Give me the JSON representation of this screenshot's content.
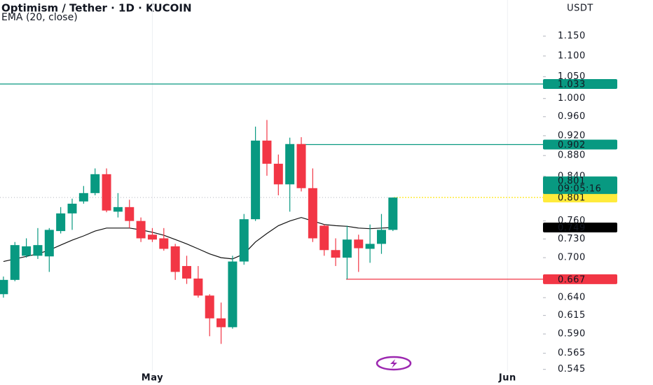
{
  "chart_data": {
    "type": "candlestick",
    "title": "Optimism / Tether · 1D · KUCOIN",
    "y_axis_label": "USDT",
    "log_scale": true,
    "x_grid": true,
    "up_color": "#089981",
    "down_color": "#f23645",
    "ylim": [
      0.543,
      1.247
    ],
    "yticks": [
      0.545,
      0.565,
      {
        "value": 0.59,
        "label": "0.590"
      },
      0.615,
      {
        "value": 0.64,
        "label": "0.640"
      },
      {
        "value": 0.7,
        "label": "0.700"
      },
      {
        "value": 0.73,
        "label": "0.730"
      },
      {
        "value": 0.76,
        "label": "0.760"
      },
      {
        "value": 0.84,
        "label": "0.840"
      },
      {
        "value": 0.88,
        "label": "0.880"
      },
      {
        "value": 0.92,
        "label": "0.920"
      },
      {
        "value": 0.96,
        "label": "0.960"
      },
      {
        "value": 1,
        "label": "1.000"
      },
      {
        "value": 1.05,
        "label": "1.050"
      },
      {
        "value": 1.1,
        "label": "1.100"
      },
      {
        "value": 1.15,
        "label": "1.150"
      }
    ],
    "xlim": [
      -0.3,
      47.1
    ],
    "xticks": [
      {
        "value": 13,
        "label": "May"
      },
      {
        "value": 44,
        "label": "Jun"
      }
    ],
    "open": [
      0.645,
      0.666,
      0.703,
      0.703,
      0.702,
      0.743,
      0.773,
      0.794,
      0.809,
      0.844,
      0.776,
      0.784,
      0.76,
      0.737,
      0.731,
      0.718,
      0.687,
      0.668,
      0.643,
      0.611,
      0.599,
      0.694,
      0.763,
      0.91,
      0.864,
      0.825,
      0.903,
      0.818,
      0.752,
      0.712,
      0.7,
      0.729,
      0.714,
      0.722,
      0.745
    ],
    "high": [
      0.671,
      0.725,
      0.731,
      0.748,
      0.748,
      0.784,
      0.799,
      0.822,
      0.855,
      0.855,
      0.809,
      0.797,
      0.766,
      0.748,
      0.748,
      0.722,
      0.703,
      0.687,
      0.645,
      0.633,
      0.703,
      0.772,
      0.939,
      0.953,
      0.882,
      0.916,
      0.917,
      0.855,
      0.754,
      0.731,
      0.752,
      0.737,
      0.754,
      0.772,
      0.801
    ],
    "low": [
      0.64,
      0.664,
      0.7,
      0.698,
      0.678,
      0.739,
      0.745,
      0.79,
      0.805,
      0.775,
      0.766,
      0.748,
      0.725,
      0.725,
      0.711,
      0.666,
      0.66,
      0.64,
      0.587,
      0.577,
      0.597,
      0.689,
      0.76,
      0.841,
      0.805,
      0.776,
      0.812,
      0.725,
      0.703,
      0.687,
      0.667,
      0.678,
      0.692,
      0.706,
      0.743
    ],
    "close": [
      0.666,
      0.72,
      0.718,
      0.72,
      0.745,
      0.773,
      0.79,
      0.809,
      0.844,
      0.778,
      0.784,
      0.76,
      0.731,
      0.729,
      0.714,
      0.678,
      0.668,
      0.643,
      0.611,
      0.599,
      0.694,
      0.763,
      0.91,
      0.864,
      0.825,
      0.903,
      0.818,
      0.731,
      0.712,
      0.7,
      0.729,
      0.715,
      0.722,
      0.745,
      0.801
    ],
    "ema": {
      "name": "EMA (20, close)",
      "color": "#111111",
      "values": [
        0.694,
        0.698,
        0.702,
        0.706,
        0.712,
        0.72,
        0.728,
        0.735,
        0.743,
        0.748,
        0.748,
        0.748,
        0.745,
        0.741,
        0.736,
        0.729,
        0.722,
        0.714,
        0.706,
        0.7,
        0.698,
        0.706,
        0.725,
        0.739,
        0.752,
        0.76,
        0.766,
        0.76,
        0.754,
        0.752,
        0.751,
        0.748,
        0.747,
        0.748,
        0.749
      ]
    },
    "levels": [
      {
        "value": 1.033,
        "color": "#089981"
      },
      {
        "value": 0.902,
        "color": "#089981"
      },
      {
        "value": 0.801,
        "color": "#ffeb3b"
      },
      {
        "value": 0.667,
        "color": "#f23645"
      }
    ],
    "last_price": {
      "value": 0.801,
      "countdown": "09:05:16",
      "color": "#089981"
    }
  }
}
